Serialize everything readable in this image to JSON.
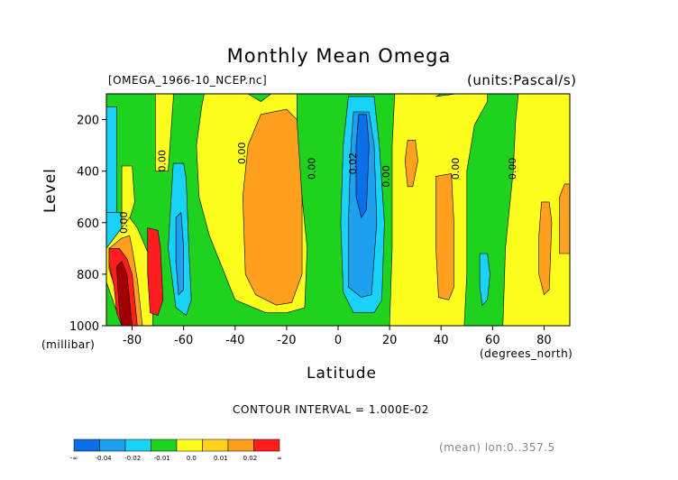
{
  "chart_data": {
    "type": "contour",
    "title": "Monthly Mean Omega",
    "source_label": "[OMEGA_1966-10_NCEP.nc]",
    "units_label": "(units:Pascal/s)",
    "xlabel": "Latitude",
    "x_units": "(degrees_north)",
    "ylabel": "Level",
    "y_units": "(millibar)",
    "xlim": [
      -90,
      90
    ],
    "ylim": [
      1000,
      100
    ],
    "x_ticks": [
      -80,
      -60,
      -40,
      -20,
      0,
      20,
      40,
      60,
      80
    ],
    "y_ticks": [
      200,
      400,
      600,
      800,
      1000
    ],
    "contour_labels": [
      {
        "text": "0.00",
        "lat": -82,
        "lev": 600
      },
      {
        "text": "0.00",
        "lat": -67,
        "lev": 360
      },
      {
        "text": "0.00",
        "lat": -36,
        "lev": 330
      },
      {
        "text": "0.00",
        "lat": -9,
        "lev": 390
      },
      {
        "text": "0.02",
        "lat": 7,
        "lev": 370
      },
      {
        "text": "0.00",
        "lat": 20,
        "lev": 420
      },
      {
        "text": "0.00",
        "lat": 47,
        "lev": 390
      },
      {
        "text": "0.00",
        "lat": 69,
        "lev": 390
      }
    ],
    "contour_interval_text": "CONTOUR INTERVAL = 1.000E-02",
    "mean_text": "(mean) lon:0..357.5",
    "colorbar": {
      "colors": [
        "#0a6fe8",
        "#1ea0f0",
        "#18d2f8",
        "#1ed21e",
        "#ffff1e",
        "#ffd21e",
        "#ffa01e",
        "#ff1e1e"
      ],
      "labels": [
        "-∞",
        "-0.04",
        "-0.02",
        "-0.01",
        "0.0",
        "0.01",
        "0.02",
        "∞"
      ]
    },
    "regions": [
      {
        "class": "positive",
        "points": [
          [
            -71,
            100
          ],
          [
            -64,
            100
          ],
          [
            -64,
            120
          ],
          [
            -66,
            400
          ],
          [
            -71,
            400
          ]
        ]
      },
      {
        "class": "negative",
        "points": [
          [
            -90,
            150
          ],
          [
            -86,
            150
          ],
          [
            -86,
            600
          ],
          [
            -90,
            600
          ]
        ]
      },
      {
        "class": "negative",
        "points": [
          [
            -90,
            560
          ],
          [
            -84,
            560
          ],
          [
            -84,
            700
          ],
          [
            -90,
            700
          ]
        ]
      },
      {
        "class": "positive",
        "points": [
          [
            -84,
            380
          ],
          [
            -80,
            380
          ],
          [
            -79,
            520
          ],
          [
            -82,
            620
          ],
          [
            -84,
            660
          ]
        ]
      },
      {
        "class": "positive",
        "points": [
          [
            -90,
            700
          ],
          [
            -84,
            620
          ],
          [
            -81,
            580
          ],
          [
            -78,
            620
          ],
          [
            -72,
            760
          ],
          [
            -72,
            1000
          ],
          [
            -84,
            1000
          ],
          [
            -90,
            830
          ]
        ]
      },
      {
        "class": "positive_mid",
        "points": [
          [
            -89,
            700
          ],
          [
            -84,
            660
          ],
          [
            -81,
            650
          ],
          [
            -80,
            700
          ],
          [
            -78,
            820
          ],
          [
            -76,
            1000
          ],
          [
            -82,
            1000
          ],
          [
            -89,
            780
          ]
        ]
      },
      {
        "class": "positive_strong",
        "points": [
          [
            -89,
            700
          ],
          [
            -85,
            700
          ],
          [
            -82,
            740
          ],
          [
            -80,
            800
          ],
          [
            -79,
            900
          ],
          [
            -78,
            1000
          ],
          [
            -84,
            1000
          ],
          [
            -86,
            950
          ],
          [
            -87,
            850
          ],
          [
            -89,
            760
          ]
        ]
      },
      {
        "class": "positive_strong",
        "points": [
          [
            -74,
            620
          ],
          [
            -70,
            630
          ],
          [
            -69,
            700
          ],
          [
            -68,
            900
          ],
          [
            -70,
            960
          ],
          [
            -73,
            950
          ],
          [
            -74,
            800
          ]
        ]
      },
      {
        "class": "positive_extreme",
        "points": [
          [
            -86,
            770
          ],
          [
            -84,
            750
          ],
          [
            -82,
            800
          ],
          [
            -81,
            900
          ],
          [
            -80,
            1000
          ],
          [
            -84,
            1000
          ],
          [
            -85,
            940
          ]
        ]
      },
      {
        "class": "negative",
        "points": [
          [
            -64,
            370
          ],
          [
            -60,
            370
          ],
          [
            -59,
            430
          ],
          [
            -58,
            700
          ],
          [
            -57,
            900
          ],
          [
            -59,
            960
          ],
          [
            -63,
            930
          ],
          [
            -66,
            700
          ]
        ]
      },
      {
        "class": "negative_mid",
        "points": [
          [
            -63,
            580
          ],
          [
            -61,
            560
          ],
          [
            -60,
            700
          ],
          [
            -60,
            860
          ],
          [
            -62,
            880
          ],
          [
            -63,
            750
          ]
        ]
      },
      {
        "class": "positive",
        "points": [
          [
            -52,
            100
          ],
          [
            -35,
            100
          ],
          [
            -30,
            130
          ],
          [
            -26,
            100
          ],
          [
            -16,
            100
          ],
          [
            -16,
            300
          ],
          [
            -12,
            700
          ],
          [
            -13,
            930
          ],
          [
            -20,
            950
          ],
          [
            -28,
            950
          ],
          [
            -40,
            900
          ],
          [
            -44,
            800
          ],
          [
            -50,
            650
          ],
          [
            -54,
            500
          ],
          [
            -55,
            300
          ],
          [
            -53,
            150
          ]
        ]
      },
      {
        "class": "positive_mid",
        "points": [
          [
            -30,
            180
          ],
          [
            -20,
            160
          ],
          [
            -16,
            200
          ],
          [
            -14,
            500
          ],
          [
            -14,
            800
          ],
          [
            -18,
            910
          ],
          [
            -24,
            920
          ],
          [
            -32,
            880
          ],
          [
            -36,
            800
          ],
          [
            -37,
            500
          ],
          [
            -35,
            300
          ]
        ]
      },
      {
        "class": "negative",
        "points": [
          [
            4,
            110
          ],
          [
            14,
            110
          ],
          [
            16,
            300
          ],
          [
            18,
            600
          ],
          [
            17,
            900
          ],
          [
            14,
            950
          ],
          [
            6,
            950
          ],
          [
            2,
            870
          ],
          [
            1,
            600
          ],
          [
            2,
            300
          ]
        ]
      },
      {
        "class": "negative_mid",
        "points": [
          [
            6,
            170
          ],
          [
            12,
            170
          ],
          [
            14,
            300
          ],
          [
            15,
            600
          ],
          [
            13,
            880
          ],
          [
            9,
            890
          ],
          [
            4,
            850
          ],
          [
            4,
            600
          ],
          [
            5,
            300
          ]
        ]
      },
      {
        "class": "negative_strong",
        "points": [
          [
            8,
            180
          ],
          [
            11,
            180
          ],
          [
            12,
            300
          ],
          [
            11,
            550
          ],
          [
            9,
            580
          ],
          [
            7,
            500
          ],
          [
            7,
            300
          ]
        ]
      },
      {
        "class": "positive",
        "points": [
          [
            22,
            100
          ],
          [
            40,
            100
          ],
          [
            38,
            110
          ],
          [
            46,
            100
          ],
          [
            58,
            100
          ],
          [
            58,
            130
          ],
          [
            53,
            220
          ],
          [
            50,
            400
          ],
          [
            50,
            800
          ],
          [
            49,
            1000
          ],
          [
            20,
            1000
          ],
          [
            21,
            700
          ],
          [
            21,
            300
          ]
        ]
      },
      {
        "class": "positive_mid",
        "points": [
          [
            27,
            280
          ],
          [
            30,
            280
          ],
          [
            31,
            360
          ],
          [
            29,
            460
          ],
          [
            27,
            460
          ],
          [
            26,
            360
          ]
        ]
      },
      {
        "class": "positive_mid",
        "points": [
          [
            38,
            420
          ],
          [
            44,
            410
          ],
          [
            45,
            600
          ],
          [
            45,
            850
          ],
          [
            43,
            900
          ],
          [
            39,
            890
          ],
          [
            38,
            700
          ]
        ]
      },
      {
        "class": "negative",
        "points": [
          [
            55,
            720
          ],
          [
            58,
            720
          ],
          [
            59,
            800
          ],
          [
            58,
            900
          ],
          [
            56,
            920
          ],
          [
            55,
            850
          ]
        ]
      },
      {
        "class": "positive",
        "points": [
          [
            70,
            100
          ],
          [
            90,
            100
          ],
          [
            90,
            1000
          ],
          [
            64,
            1000
          ],
          [
            65,
            700
          ],
          [
            68,
            400
          ],
          [
            69,
            200
          ]
        ]
      },
      {
        "class": "positive_mid",
        "points": [
          [
            79,
            520
          ],
          [
            82,
            520
          ],
          [
            83,
            600
          ],
          [
            82,
            860
          ],
          [
            80,
            880
          ],
          [
            78,
            800
          ],
          [
            78,
            650
          ]
        ]
      },
      {
        "class": "positive_mid",
        "points": [
          [
            86,
            500
          ],
          [
            88,
            450
          ],
          [
            90,
            450
          ],
          [
            90,
            720
          ],
          [
            86,
            720
          ]
        ]
      }
    ]
  }
}
